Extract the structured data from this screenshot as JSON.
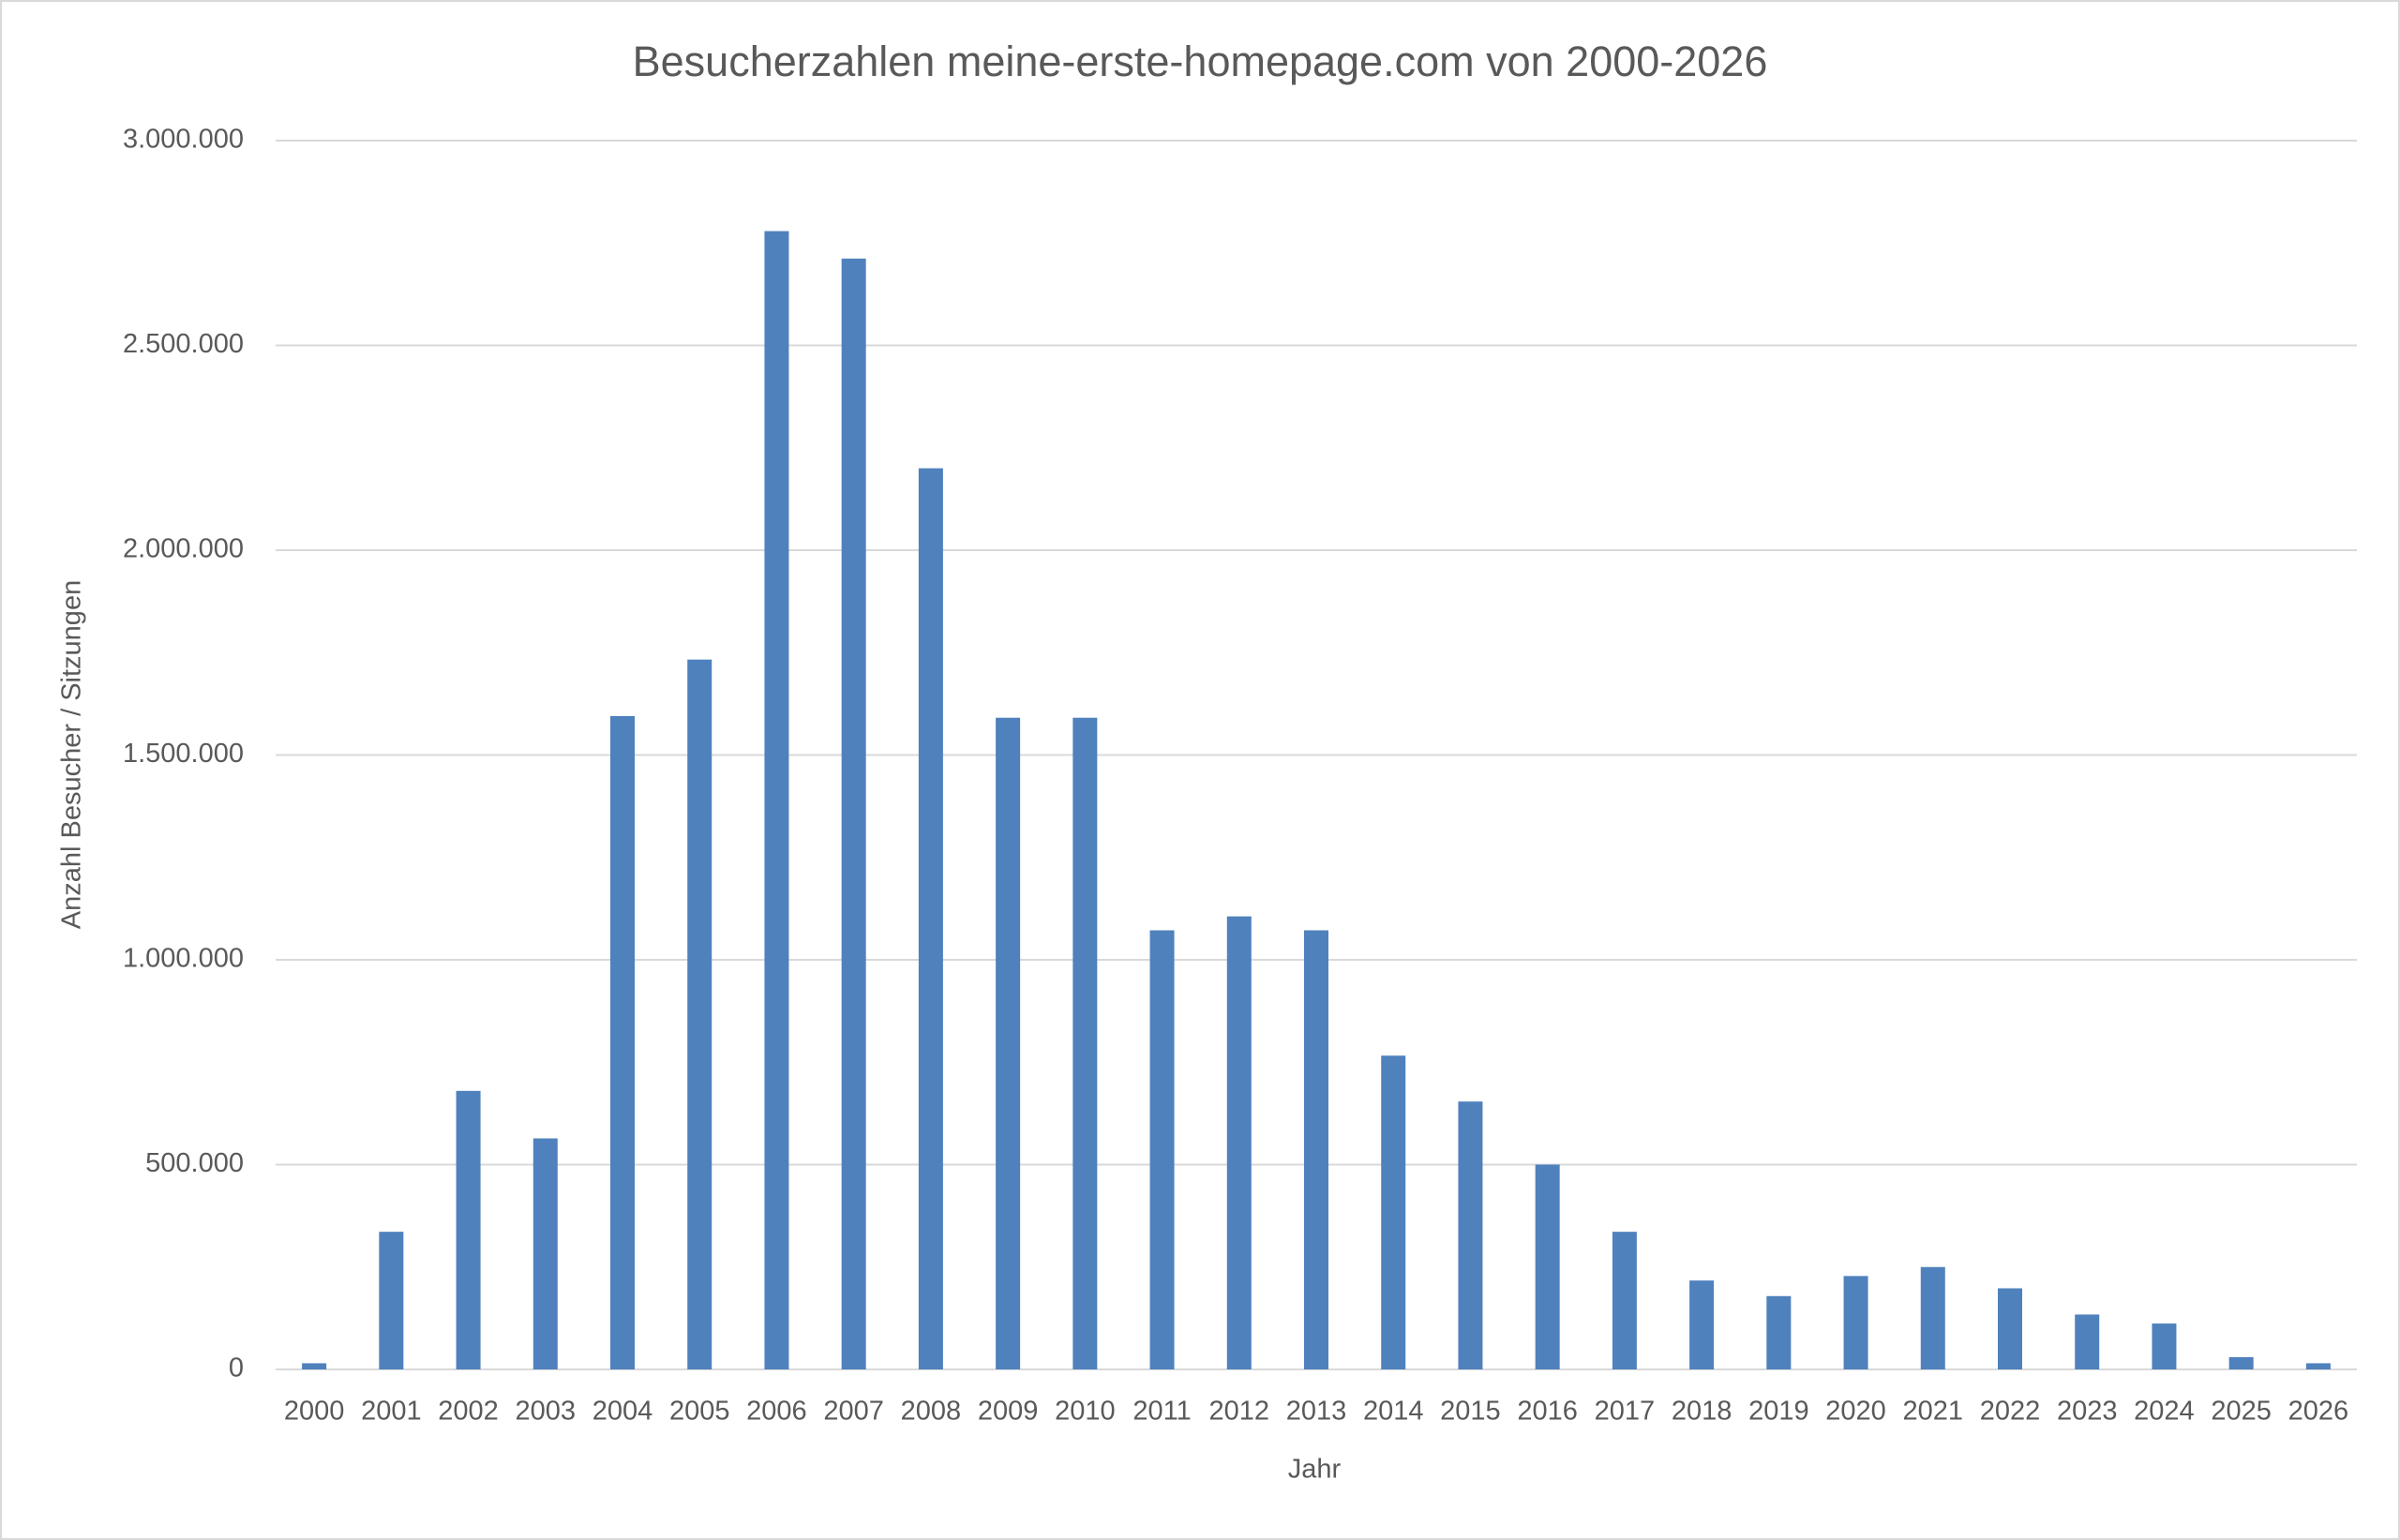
{
  "chart_data": {
    "type": "bar",
    "title": "Besucherzahlen meine-erste-homepage.com von 2000-2026",
    "x_label": "Jahr",
    "y_label": "Anzahl Besucher / Sitzungen",
    "categories": [
      "2000",
      "2001",
      "2002",
      "2003",
      "2004",
      "2005",
      "2006",
      "2007",
      "2008",
      "2009",
      "2010",
      "2011",
      "2012",
      "2013",
      "2014",
      "2015",
      "2016",
      "2017",
      "2018",
      "2019",
      "2020",
      "2021",
      "2022",
      "2023",
      "2024",
      "2025",
      "2026"
    ],
    "values": [
      15000,
      336000,
      680000,
      564000,
      1595000,
      1733000,
      2779000,
      2712000,
      2200000,
      1591000,
      1591000,
      1072000,
      1106000,
      1072000,
      766000,
      654000,
      500000,
      336000,
      217000,
      179000,
      228000,
      250000,
      198000,
      134000,
      112000,
      30000,
      15000
    ],
    "color": "#4f81bd",
    "ylim": [
      0,
      3000000
    ],
    "yticks": [
      0,
      {
        "value": 500000,
        "label": "500.000"
      },
      {
        "value": 1000000,
        "label": "1.000.000"
      },
      {
        "value": 1500000,
        "label": "1.500.000"
      },
      {
        "value": 2000000,
        "label": "2.000.000"
      },
      {
        "value": 2500000,
        "label": "2.500.000"
      },
      {
        "value": 3000000,
        "label": "3.000.000"
      }
    ],
    "grid": true
  }
}
